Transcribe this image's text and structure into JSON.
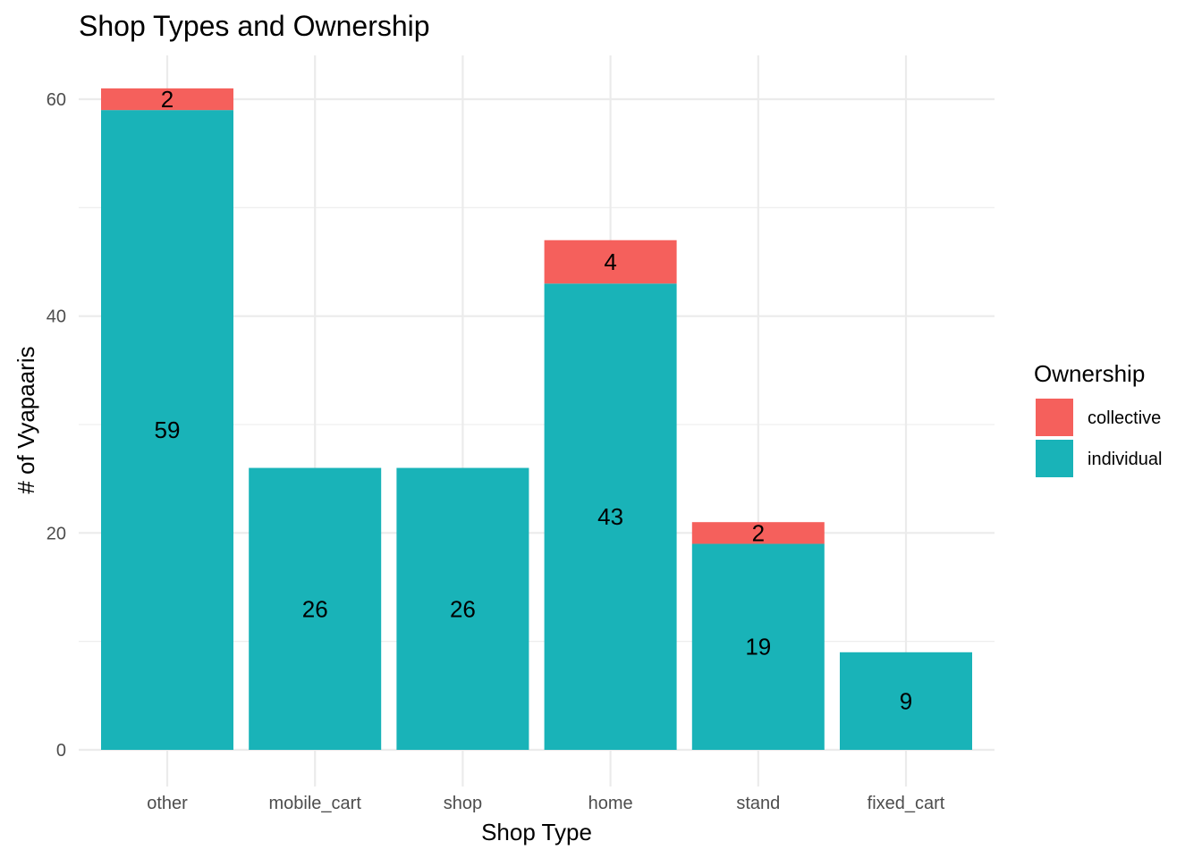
{
  "chart_data": {
    "type": "bar",
    "stacked": true,
    "title": "Shop Types and Ownership",
    "xlabel": "Shop Type",
    "ylabel": "# of Vyapaaris",
    "categories": [
      "other",
      "mobile_cart",
      "shop",
      "home",
      "stand",
      "fixed_cart"
    ],
    "series": [
      {
        "name": "individual",
        "color": "#19B3B8",
        "values": [
          59,
          26,
          26,
          43,
          19,
          9
        ]
      },
      {
        "name": "collective",
        "color": "#F5605C",
        "values": [
          2,
          0,
          0,
          4,
          2,
          0
        ]
      }
    ],
    "ylim": [
      0,
      63
    ],
    "yticks": [
      0,
      20,
      40,
      60
    ],
    "grid": true,
    "legend": {
      "title": "Ownership",
      "position": "right",
      "entries": [
        {
          "name": "collective",
          "color": "#F5605C"
        },
        {
          "name": "individual",
          "color": "#19B3B8"
        }
      ]
    }
  }
}
